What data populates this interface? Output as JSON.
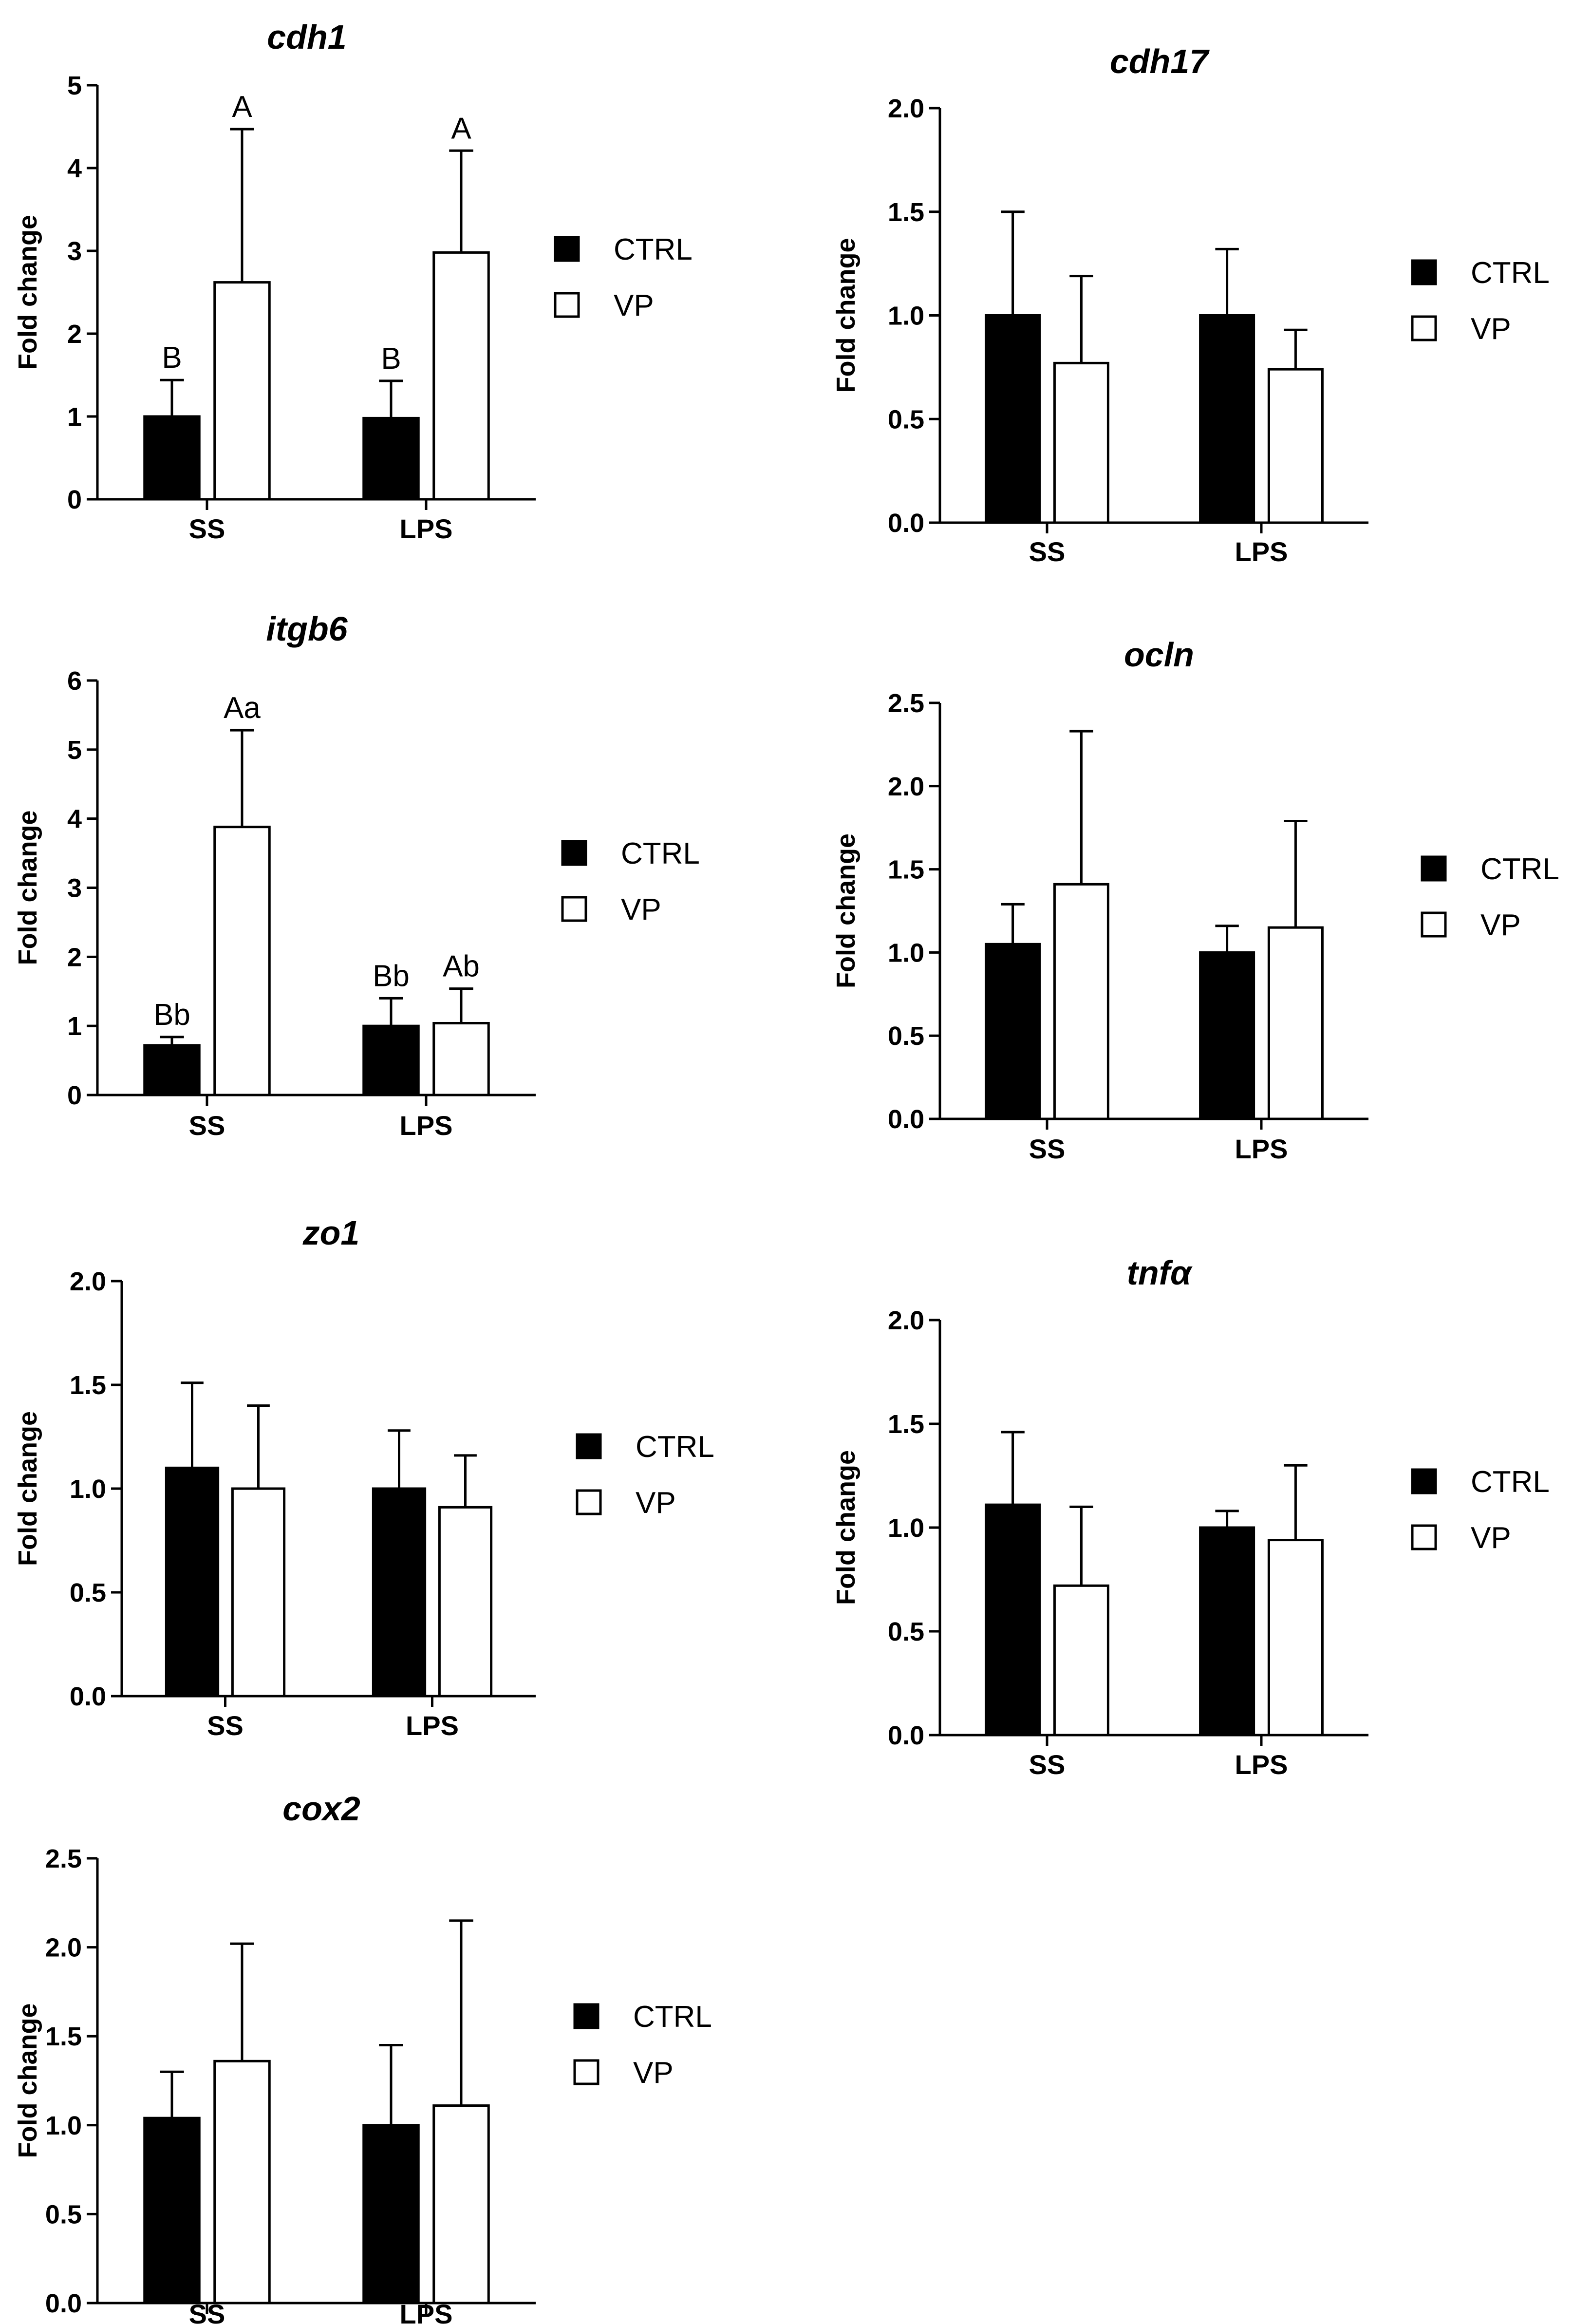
{
  "figure": {
    "description": "Relative expression of genes in SS and LPS groups, CTRL vs VP"
  },
  "chart_data": [
    {
      "type": "bar",
      "title": "cdh1",
      "xlabel": "",
      "ylabel": "Fold change",
      "ylim": [
        0,
        5
      ],
      "yticks": [
        "0",
        "1",
        "2",
        "3",
        "4",
        "5"
      ],
      "categories": [
        "SS",
        "LPS"
      ],
      "legend": [
        "CTRL",
        "VP"
      ],
      "series": [
        {
          "name": "CTRL",
          "color": "#000000",
          "values": [
            1.0,
            0.98
          ],
          "errors": [
            0.44,
            0.45
          ],
          "labels": [
            "B",
            "B"
          ]
        },
        {
          "name": "VP",
          "color": "#ffffff",
          "values": [
            2.62,
            2.98
          ],
          "errors": [
            1.85,
            1.23
          ],
          "labels": [
            "A",
            "A"
          ]
        }
      ]
    },
    {
      "type": "bar",
      "title": "cdh17",
      "xlabel": "",
      "ylabel": "Fold change",
      "ylim": [
        0,
        2.0
      ],
      "yticks": [
        "0.0",
        "0.5",
        "1.0",
        "1.5",
        "2.0"
      ],
      "categories": [
        "SS",
        "LPS"
      ],
      "legend": [
        "CTRL",
        "VP"
      ],
      "series": [
        {
          "name": "CTRL",
          "color": "#000000",
          "values": [
            1.0,
            1.0
          ],
          "errors": [
            0.5,
            0.32
          ],
          "labels": [
            "",
            ""
          ]
        },
        {
          "name": "VP",
          "color": "#ffffff",
          "values": [
            0.77,
            0.74
          ],
          "errors": [
            0.42,
            0.19
          ],
          "labels": [
            "",
            ""
          ]
        }
      ]
    },
    {
      "type": "bar",
      "title": "itgb6",
      "xlabel": "",
      "ylabel": "Fold change",
      "ylim": [
        0,
        6
      ],
      "yticks": [
        "0",
        "1",
        "2",
        "3",
        "4",
        "5",
        "6"
      ],
      "categories": [
        "SS",
        "LPS"
      ],
      "legend": [
        "CTRL",
        "VP"
      ],
      "series": [
        {
          "name": "CTRL",
          "color": "#000000",
          "values": [
            0.72,
            1.0
          ],
          "errors": [
            0.12,
            0.4
          ],
          "labels": [
            "Bb",
            "Bb"
          ]
        },
        {
          "name": "VP",
          "color": "#ffffff",
          "values": [
            3.88,
            1.04
          ],
          "errors": [
            1.4,
            0.5
          ],
          "labels": [
            "Aa",
            "Ab"
          ]
        }
      ]
    },
    {
      "type": "bar",
      "title": "ocln",
      "xlabel": "",
      "ylabel": "Fold change",
      "ylim": [
        0,
        2.5
      ],
      "yticks": [
        "0.0",
        "0.5",
        "1.0",
        "1.5",
        "2.0",
        "2.5"
      ],
      "categories": [
        "SS",
        "LPS"
      ],
      "legend": [
        "CTRL",
        "VP"
      ],
      "series": [
        {
          "name": "CTRL",
          "color": "#000000",
          "values": [
            1.05,
            1.0
          ],
          "errors": [
            0.24,
            0.16
          ],
          "labels": [
            "",
            ""
          ]
        },
        {
          "name": "VP",
          "color": "#ffffff",
          "values": [
            1.41,
            1.15
          ],
          "errors": [
            0.92,
            0.64
          ],
          "labels": [
            "",
            ""
          ]
        }
      ]
    },
    {
      "type": "bar",
      "title": "zo1",
      "xlabel": "",
      "ylabel": "Fold change",
      "ylim": [
        0,
        2.0
      ],
      "yticks": [
        "0.0",
        "0.5",
        "1.0",
        "1.5",
        "2.0"
      ],
      "categories": [
        "SS",
        "LPS"
      ],
      "legend": [
        "CTRL",
        "VP"
      ],
      "series": [
        {
          "name": "CTRL",
          "color": "#000000",
          "values": [
            1.1,
            1.0
          ],
          "errors": [
            0.41,
            0.28
          ],
          "labels": [
            "",
            ""
          ]
        },
        {
          "name": "VP",
          "color": "#ffffff",
          "values": [
            1.0,
            0.91
          ],
          "errors": [
            0.4,
            0.25
          ],
          "labels": [
            "",
            ""
          ]
        }
      ]
    },
    {
      "type": "bar",
      "title": "tnfα",
      "xlabel": "",
      "ylabel": "Fold change",
      "ylim": [
        0,
        2.0
      ],
      "yticks": [
        "0.0",
        "0.5",
        "1.0",
        "1.5",
        "2.0"
      ],
      "categories": [
        "SS",
        "LPS"
      ],
      "legend": [
        "CTRL",
        "VP"
      ],
      "series": [
        {
          "name": "CTRL",
          "color": "#000000",
          "values": [
            1.11,
            1.0
          ],
          "errors": [
            0.35,
            0.08
          ],
          "labels": [
            "",
            ""
          ]
        },
        {
          "name": "VP",
          "color": "#ffffff",
          "values": [
            0.72,
            0.94
          ],
          "errors": [
            0.38,
            0.36
          ],
          "labels": [
            "",
            ""
          ]
        }
      ]
    },
    {
      "type": "bar",
      "title": "cox2",
      "xlabel": "",
      "ylabel": "Fold change",
      "ylim": [
        0,
        2.5
      ],
      "yticks": [
        "0.0",
        "0.5",
        "1.0",
        "1.5",
        "2.0",
        "2.5"
      ],
      "categories": [
        "SS",
        "LPS"
      ],
      "legend": [
        "CTRL",
        "VP"
      ],
      "series": [
        {
          "name": "CTRL",
          "color": "#000000",
          "values": [
            1.04,
            1.0
          ],
          "errors": [
            0.26,
            0.45
          ],
          "labels": [
            "",
            ""
          ]
        },
        {
          "name": "VP",
          "color": "#ffffff",
          "values": [
            1.36,
            1.11
          ],
          "errors": [
            0.66,
            1.04
          ],
          "labels": [
            "",
            ""
          ]
        }
      ]
    }
  ]
}
